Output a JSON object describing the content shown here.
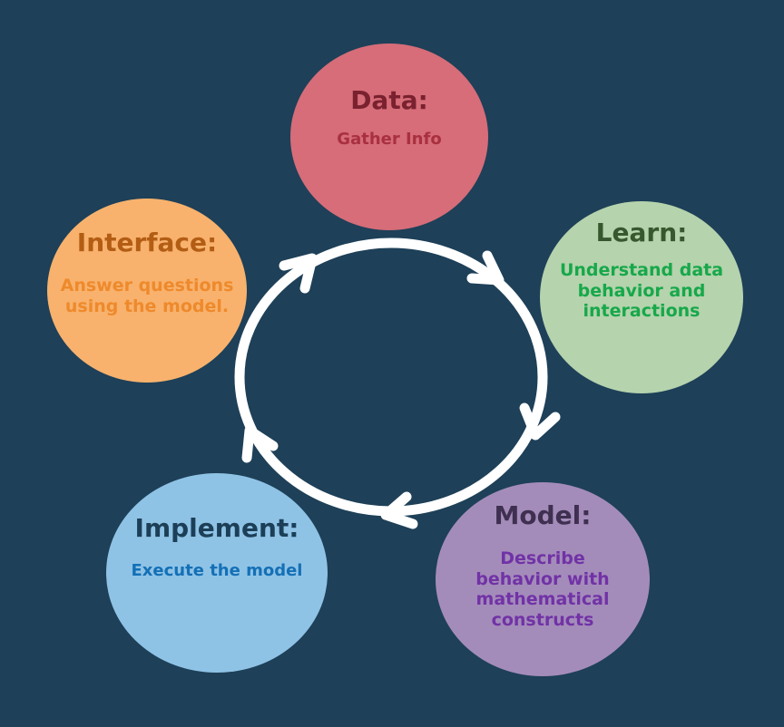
{
  "colors": {
    "background": "#1e4058",
    "cycle_stroke": "#ffffff"
  },
  "stages": [
    {
      "key": "data",
      "title": "Data:",
      "description": "Gather Info",
      "fill": "#d66d79",
      "title_color": "#7a2130",
      "desc_color": "#a9303f"
    },
    {
      "key": "learn",
      "title": "Learn:",
      "description": "Understand data behavior and interactions",
      "fill": "#b5d3ad",
      "title_color": "#37582f",
      "desc_color": "#17a84a"
    },
    {
      "key": "model",
      "title": "Model:",
      "description": "Describe behavior with mathematical constructs",
      "fill": "#a48cba",
      "title_color": "#3f2f50",
      "desc_color": "#7132a6"
    },
    {
      "key": "implement",
      "title": "Implement:",
      "description": "Execute the model",
      "fill": "#8fc3e6",
      "title_color": "#1c3f57",
      "desc_color": "#1470b6"
    },
    {
      "key": "interface",
      "title": "Interface:",
      "description": "Answer questions using the model.",
      "fill": "#f8b26d",
      "title_color": "#b35d14",
      "desc_color": "#ee8a2c"
    }
  ]
}
